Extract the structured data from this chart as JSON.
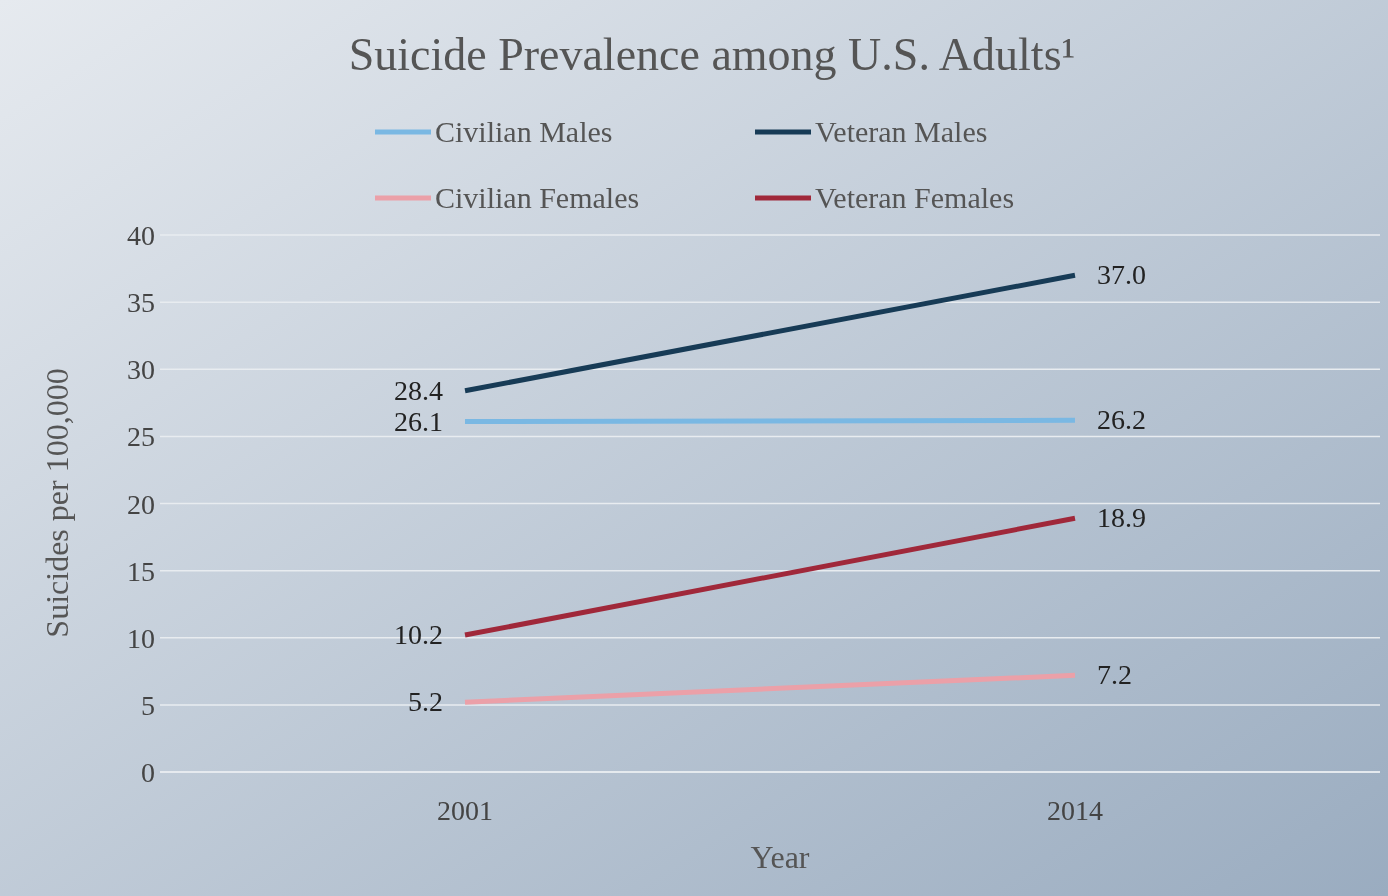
{
  "chart_data": {
    "type": "line",
    "title": "Suicide Prevalence among U.S. Adults¹",
    "xlabel": "Year",
    "ylabel": "Suicides per 100,000",
    "categories": [
      "2001",
      "2014"
    ],
    "series": [
      {
        "name": "Civilian Males",
        "color": "#7ab8e3",
        "values": [
          26.1,
          26.2
        ],
        "value_labels": [
          "26.1",
          "26.2"
        ]
      },
      {
        "name": "Veteran Males",
        "color": "#173b56",
        "values": [
          28.4,
          37.0
        ],
        "value_labels": [
          "28.4",
          "37.0"
        ]
      },
      {
        "name": "Civilian Females",
        "color": "#eba0a8",
        "values": [
          5.2,
          7.2
        ],
        "value_labels": [
          "5.2",
          "7.2"
        ]
      },
      {
        "name": "Veteran Females",
        "color": "#a0283a",
        "values": [
          10.2,
          18.9
        ],
        "value_labels": [
          "10.2",
          "18.9"
        ]
      }
    ],
    "ylim": [
      0,
      40
    ],
    "yticks": [
      0,
      5,
      10,
      15,
      20,
      25,
      30,
      35,
      40
    ],
    "grid": "y",
    "legend": "top",
    "marker": "none",
    "line_style": "solid"
  }
}
